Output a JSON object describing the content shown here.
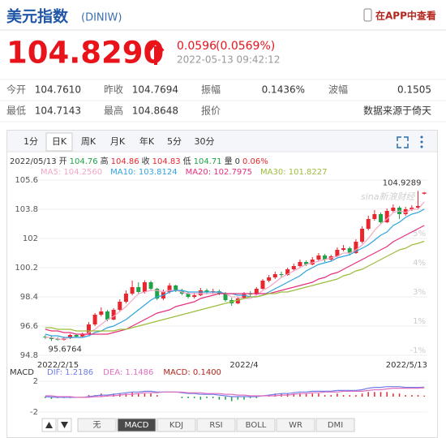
{
  "header": {
    "title": "美元指数",
    "code": "(DINIW)",
    "app_link": "在APP中查看"
  },
  "quote": {
    "price": "104.8290",
    "change": "0.0596",
    "change_pct": "(0.0569%)",
    "time": "2022-05-13 09:42:12"
  },
  "stats": [
    {
      "label": "今开",
      "value": "104.7610"
    },
    {
      "label": "昨收",
      "value": "104.7694"
    },
    {
      "label": "振幅",
      "value": "0.1436%"
    },
    {
      "label": "波幅",
      "value": "0.1505"
    },
    {
      "label": "最低",
      "value": "104.7143"
    },
    {
      "label": "最高",
      "value": "104.8648"
    },
    {
      "label": "报价"
    },
    {
      "label": "数据来源于倚天"
    }
  ],
  "tabs": [
    "1分",
    "日K",
    "周K",
    "月K",
    "年K",
    "5分",
    "30分"
  ],
  "active_tab": 1,
  "indicator_tabs": [
    "无",
    "MACD",
    "KDJ",
    "RSI",
    "BOLL",
    "WR",
    "DMI"
  ],
  "active_indicator": 1,
  "chart_data": [
    {
      "type": "candlestick",
      "up_color": "#e8262e",
      "down_color": "#1ea346",
      "watermark": "sina新浪财经",
      "info": [
        {
          "text": "2022/05/13",
          "color": "#333"
        },
        {
          "text": "开",
          "color": "#333"
        },
        {
          "text": "104.76",
          "color": "#1ea346"
        },
        {
          "text": "高",
          "color": "#333"
        },
        {
          "text": "104.86",
          "color": "#e8262e"
        },
        {
          "text": "收",
          "color": "#333"
        },
        {
          "text": "104.83",
          "color": "#e8262e"
        },
        {
          "text": "低",
          "color": "#333"
        },
        {
          "text": "104.71",
          "color": "#1ea346"
        },
        {
          "text": "量",
          "color": "#333"
        },
        {
          "text": "0",
          "color": "#333"
        },
        {
          "text": "0.06%",
          "color": "#e8262e"
        }
      ],
      "categories": [
        "2022/2/15",
        null,
        null,
        null,
        null,
        null,
        null,
        null,
        null,
        null,
        null,
        null,
        null,
        null,
        null,
        null,
        null,
        null,
        null,
        null,
        null,
        null,
        null,
        null,
        null,
        null,
        null,
        null,
        null,
        null,
        null,
        null,
        "2022/4",
        null,
        null,
        null,
        null,
        null,
        null,
        null,
        null,
        null,
        null,
        null,
        null,
        null,
        null,
        null,
        null,
        null,
        null,
        null,
        null,
        null,
        null,
        null,
        null,
        null,
        null,
        null,
        null,
        "2022/5/13"
      ],
      "open": [
        95.95,
        95.9,
        95.8,
        95.75,
        95.85,
        96.05,
        95.95,
        96.1,
        96.7,
        97.3,
        97.5,
        97.0,
        97.6,
        98.1,
        98.6,
        99.0,
        98.7,
        99.3,
        98.9,
        98.3,
        98.7,
        99.1,
        98.8,
        98.6,
        98.4,
        98.5,
        98.8,
        98.7,
        98.75,
        98.6,
        98.2,
        98.0,
        98.3,
        98.6,
        98.55,
        98.9,
        99.4,
        99.6,
        99.8,
        99.75,
        100.1,
        100.3,
        100.55,
        100.4,
        100.7,
        100.95,
        100.7,
        100.9,
        101.3,
        101.4,
        101.1,
        101.8,
        102.6,
        103.2,
        103.5,
        103.0,
        103.7,
        103.9,
        103.5,
        103.8,
        103.9,
        104.76
      ],
      "high": [
        96.05,
        95.98,
        95.92,
        95.95,
        96.12,
        96.1,
        96.2,
        96.85,
        97.4,
        97.75,
        97.6,
        97.7,
        98.25,
        98.8,
        99.4,
        99.3,
        99.42,
        99.4,
        98.95,
        98.85,
        99.25,
        99.15,
        98.9,
        98.7,
        98.65,
        98.95,
        98.9,
        98.9,
        98.85,
        98.7,
        98.35,
        98.4,
        98.7,
        98.75,
        99.0,
        99.5,
        99.75,
        99.95,
        99.95,
        100.2,
        100.45,
        100.7,
        100.65,
        100.85,
        101.1,
        101.05,
        101.0,
        101.45,
        101.6,
        101.5,
        101.95,
        102.75,
        103.4,
        103.75,
        103.6,
        103.85,
        104.1,
        104.0,
        103.95,
        104.05,
        104.93,
        104.86
      ],
      "low": [
        95.8,
        95.68,
        95.7,
        95.7,
        95.8,
        95.88,
        95.9,
        96.05,
        96.6,
        97.2,
        96.9,
        96.95,
        97.5,
        98.0,
        98.5,
        98.55,
        98.6,
        98.8,
        98.2,
        98.2,
        98.6,
        98.7,
        98.5,
        98.3,
        98.3,
        98.45,
        98.55,
        98.6,
        98.5,
        98.1,
        97.85,
        97.95,
        98.25,
        98.4,
        98.5,
        98.85,
        99.3,
        99.5,
        99.6,
        99.7,
        100.0,
        100.2,
        100.3,
        100.35,
        100.6,
        100.55,
        100.6,
        100.85,
        101.2,
        100.95,
        101.05,
        101.7,
        102.5,
        103.1,
        102.9,
        102.95,
        103.6,
        103.2,
        103.4,
        103.7,
        103.85,
        104.71
      ],
      "close": [
        95.9,
        95.8,
        95.75,
        95.85,
        96.05,
        95.95,
        96.1,
        96.7,
        97.3,
        97.5,
        97.0,
        97.6,
        98.1,
        98.6,
        99.0,
        98.7,
        99.3,
        98.9,
        98.3,
        98.7,
        99.1,
        98.8,
        98.6,
        98.4,
        98.5,
        98.8,
        98.7,
        98.75,
        98.6,
        98.2,
        98.0,
        98.3,
        98.6,
        98.55,
        98.9,
        99.4,
        99.6,
        99.8,
        99.75,
        100.1,
        100.3,
        100.55,
        100.4,
        100.7,
        100.95,
        100.7,
        100.9,
        101.3,
        101.4,
        101.1,
        101.8,
        102.6,
        103.2,
        103.5,
        103.0,
        103.7,
        103.9,
        103.5,
        103.8,
        103.9,
        104.0,
        104.83
      ],
      "ylim": [
        94.8,
        105.6
      ],
      "yticks": [
        94.8,
        96.6,
        98.4,
        100.2,
        102,
        103.8,
        105.6
      ],
      "y2ticks": [
        {
          "value": -1,
          "label": "-1%"
        },
        {
          "value": 1,
          "label": "1%"
        },
        {
          "value": 3,
          "label": "3%"
        },
        {
          "value": 4,
          "label": "4%"
        },
        {
          "value": 5,
          "label": "5%"
        }
      ],
      "annotations": [
        104.9289,
        95.6764
      ],
      "series": [
        {
          "name": "MA5",
          "legend_label": "MA5: 104.2560",
          "color": "#f4a6c6",
          "values": [
            95.9,
            95.9,
            95.8,
            95.8,
            95.9,
            95.9,
            95.9,
            96.2,
            96.4,
            96.7,
            97.0,
            97.2,
            97.5,
            97.8,
            98.2,
            98.6,
            98.7,
            98.8,
            98.8,
            98.7,
            98.8,
            98.8,
            98.7,
            98.6,
            98.6,
            98.6,
            98.6,
            98.6,
            98.7,
            98.6,
            98.4,
            98.4,
            98.3,
            98.3,
            98.5,
            98.8,
            99.0,
            99.3,
            99.6,
            99.8,
            100.0,
            100.2,
            100.4,
            100.5,
            100.6,
            100.7,
            100.8,
            100.9,
            101.1,
            101.1,
            101.3,
            101.6,
            102.0,
            102.5,
            102.9,
            103.2,
            103.6,
            103.7,
            103.6,
            103.8,
            103.8,
            104.256
          ]
        },
        {
          "name": "MA10",
          "legend_label": "MA10: 103.8124",
          "color": "#2fa4e0",
          "values": [
            96.1,
            96.0,
            96.0,
            95.9,
            95.9,
            95.9,
            95.9,
            96.0,
            96.2,
            96.3,
            96.5,
            96.6,
            96.8,
            97.0,
            97.3,
            97.6,
            97.9,
            98.2,
            98.4,
            98.5,
            98.7,
            98.8,
            98.8,
            98.7,
            98.7,
            98.7,
            98.7,
            98.7,
            98.7,
            98.6,
            98.6,
            98.5,
            98.5,
            98.4,
            98.4,
            98.5,
            98.7,
            98.9,
            99.1,
            99.3,
            99.5,
            99.7,
            100.0,
            100.2,
            100.4,
            100.5,
            100.6,
            100.8,
            100.9,
            101.0,
            101.2,
            101.4,
            101.6,
            101.9,
            102.2,
            102.4,
            102.8,
            103.0,
            103.3,
            103.5,
            103.6,
            103.8124
          ]
        },
        {
          "name": "MA20",
          "legend_label": "MA20: 102.7975",
          "color": "#e5307e",
          "values": [
            96.4,
            96.3,
            96.3,
            96.2,
            96.2,
            96.1,
            96.1,
            96.1,
            96.1,
            96.1,
            96.1,
            96.2,
            96.3,
            96.4,
            96.6,
            96.8,
            97.0,
            97.2,
            97.4,
            97.5,
            97.6,
            97.8,
            97.9,
            98.0,
            98.1,
            98.3,
            98.4,
            98.5,
            98.6,
            98.6,
            98.6,
            98.6,
            98.6,
            98.6,
            98.6,
            98.6,
            98.6,
            98.7,
            98.8,
            98.9,
            99.0,
            99.1,
            99.2,
            99.3,
            99.5,
            99.6,
            99.8,
            99.9,
            100.1,
            100.3,
            100.5,
            100.7,
            100.9,
            101.1,
            101.3,
            101.5,
            101.8,
            102.0,
            102.2,
            102.4,
            102.6,
            102.7975
          ]
        },
        {
          "name": "MA30",
          "legend_label": "MA30: 101.8227",
          "color": "#9cbd3c",
          "values": [
            96.5,
            96.5,
            96.4,
            96.4,
            96.4,
            96.3,
            96.3,
            96.3,
            96.3,
            96.3,
            96.3,
            96.3,
            96.4,
            96.4,
            96.5,
            96.6,
            96.7,
            96.8,
            96.9,
            97.0,
            97.1,
            97.2,
            97.3,
            97.4,
            97.5,
            97.6,
            97.7,
            97.8,
            97.9,
            98.0,
            98.1,
            98.2,
            98.3,
            98.4,
            98.4,
            98.5,
            98.6,
            98.6,
            98.7,
            98.7,
            98.8,
            98.9,
            99.0,
            99.1,
            99.2,
            99.3,
            99.4,
            99.5,
            99.7,
            99.8,
            100.0,
            100.1,
            100.3,
            100.5,
            100.7,
            100.9,
            101.1,
            101.3,
            101.4,
            101.6,
            101.7,
            101.8227
          ]
        }
      ]
    },
    {
      "type": "macd",
      "title": "MACD",
      "ylim": [
        -2.32,
        2.74
      ],
      "yticks": [
        -2,
        2
      ],
      "up_color": "#e8262e",
      "down_color": "#1ea346",
      "series": [
        {
          "name": "DIF",
          "legend_label": "DIF: 1.2186",
          "color": "#6f7ee8",
          "values": [
            0.0,
            -0.05,
            -0.1,
            -0.1,
            -0.1,
            -0.1,
            -0.1,
            0.0,
            0.1,
            0.2,
            0.2,
            0.3,
            0.4,
            0.5,
            0.6,
            0.6,
            0.7,
            0.7,
            0.6,
            0.6,
            0.6,
            0.6,
            0.5,
            0.4,
            0.4,
            0.3,
            0.3,
            0.3,
            0.2,
            0.1,
            0.0,
            0.0,
            0.0,
            0.0,
            0.0,
            0.1,
            0.2,
            0.3,
            0.4,
            0.4,
            0.5,
            0.6,
            0.6,
            0.7,
            0.7,
            0.7,
            0.7,
            0.8,
            0.8,
            0.8,
            0.8,
            0.9,
            1.1,
            1.2,
            1.2,
            1.3,
            1.3,
            1.3,
            1.2,
            1.2,
            1.2,
            1.2186
          ]
        },
        {
          "name": "DEA",
          "legend_label": "DEA: 1.1486",
          "color": "#e06fc0",
          "values": [
            0.1,
            0.1,
            0.0,
            0.0,
            0.0,
            -0.1,
            -0.1,
            -0.1,
            0.0,
            0.0,
            0.1,
            0.1,
            0.2,
            0.3,
            0.3,
            0.4,
            0.5,
            0.5,
            0.5,
            0.6,
            0.6,
            0.6,
            0.6,
            0.5,
            0.5,
            0.5,
            0.4,
            0.4,
            0.4,
            0.3,
            0.3,
            0.2,
            0.2,
            0.1,
            0.1,
            0.1,
            0.1,
            0.1,
            0.2,
            0.2,
            0.3,
            0.4,
            0.4,
            0.5,
            0.5,
            0.6,
            0.6,
            0.6,
            0.7,
            0.7,
            0.7,
            0.7,
            0.8,
            0.9,
            0.9,
            1.0,
            1.1,
            1.1,
            1.1,
            1.1,
            1.1,
            1.1486
          ]
        },
        {
          "name": "MACD",
          "legend_label": "MACD: 0.1400",
          "color": "#b3261e",
          "values": [
            -0.2,
            -0.3,
            -0.2,
            -0.2,
            -0.2,
            0.0,
            0.0,
            0.2,
            0.2,
            0.4,
            0.2,
            0.4,
            0.4,
            0.4,
            0.6,
            0.4,
            0.4,
            0.4,
            0.2,
            0.0,
            0.0,
            0.0,
            -0.2,
            -0.2,
            -0.2,
            -0.4,
            -0.2,
            -0.2,
            -0.4,
            -0.4,
            -0.6,
            -0.4,
            -0.4,
            -0.2,
            -0.2,
            0.0,
            0.2,
            0.4,
            0.4,
            0.4,
            0.4,
            0.4,
            0.4,
            0.4,
            0.4,
            0.2,
            0.2,
            0.4,
            0.2,
            0.2,
            0.2,
            0.4,
            0.6,
            0.6,
            0.6,
            0.6,
            0.4,
            0.4,
            0.2,
            0.2,
            0.2,
            0.14
          ]
        }
      ]
    }
  ]
}
